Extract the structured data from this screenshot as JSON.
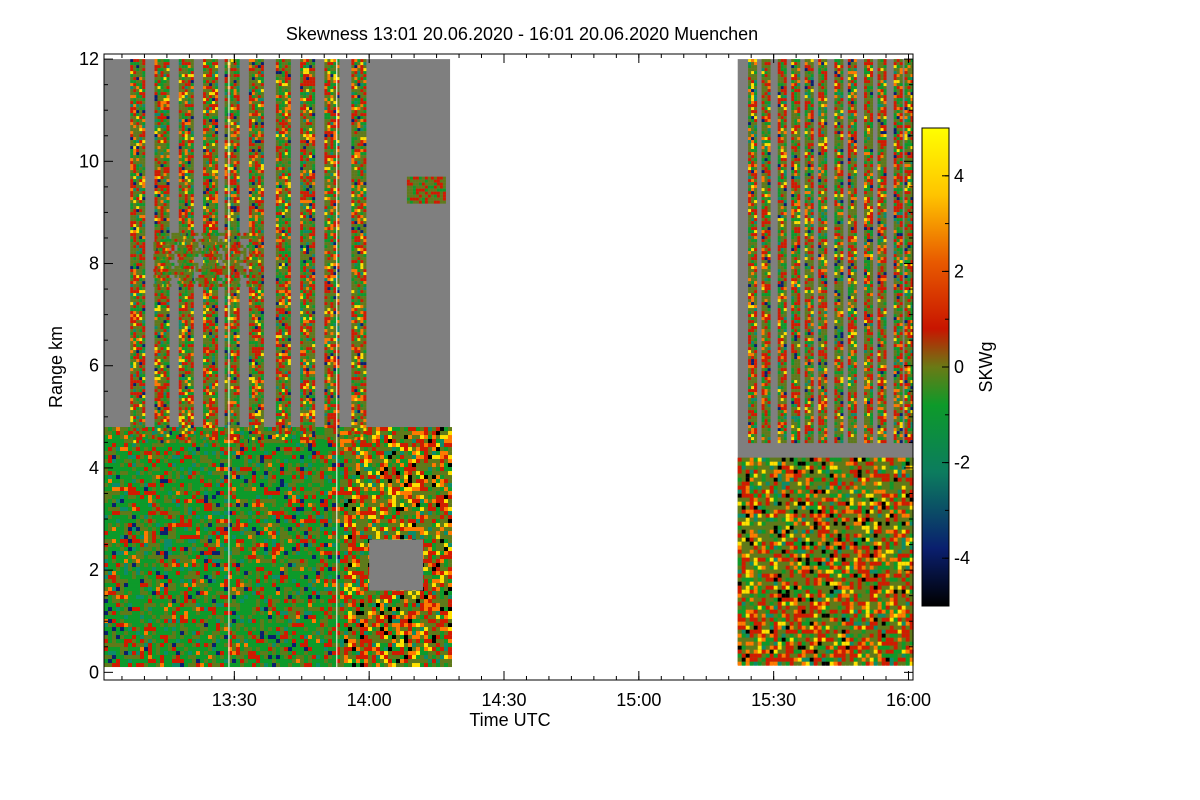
{
  "chart_data": {
    "type": "heatmap",
    "title": "Skewness   13:01 20.06.2020 - 16:01 20.06.2020 Muenchen",
    "xlabel": "Time UTC",
    "ylabel": "Range km",
    "colorbar_label": "SKWg",
    "xlim": [
      13.0167,
      16.0167
    ],
    "ylim": [
      -0.15,
      12.1
    ],
    "x_ticks": [
      {
        "value": 13.5,
        "label": "13:30"
      },
      {
        "value": 14.0,
        "label": "14:00"
      },
      {
        "value": 14.5,
        "label": "14:30"
      },
      {
        "value": 15.0,
        "label": "15:00"
      },
      {
        "value": 15.5,
        "label": "15:30"
      },
      {
        "value": 16.0,
        "label": "16:00"
      }
    ],
    "y_ticks": [
      {
        "value": 0,
        "label": "0"
      },
      {
        "value": 2,
        "label": "2"
      },
      {
        "value": 4,
        "label": "4"
      },
      {
        "value": 6,
        "label": "6"
      },
      {
        "value": 8,
        "label": "8"
      },
      {
        "value": 10,
        "label": "10"
      },
      {
        "value": 12,
        "label": "12"
      }
    ],
    "colorbar_range": [
      -5,
      5
    ],
    "colorbar_ticks": [
      {
        "value": 4,
        "label": "4"
      },
      {
        "value": 2,
        "label": "2"
      },
      {
        "value": 0,
        "label": "0"
      },
      {
        "value": -2,
        "label": "-2"
      },
      {
        "value": -4,
        "label": "-4"
      }
    ],
    "data_segments": [
      {
        "start": 13.0167,
        "end": 14.3,
        "range_max": 12.0
      },
      {
        "start": 15.3667,
        "end": 16.0167,
        "range_max": 12.0
      }
    ],
    "data_gap": {
      "start": 14.3,
      "end": 15.3667
    },
    "background_color": "#7f7f7f",
    "colormap": [
      "#000000",
      "#0a1f6e",
      "#0c7c5e",
      "#0d9a2a",
      "#5f7a1a",
      "#d11a00",
      "#ff7a00",
      "#ffd200",
      "#ffff00"
    ]
  }
}
